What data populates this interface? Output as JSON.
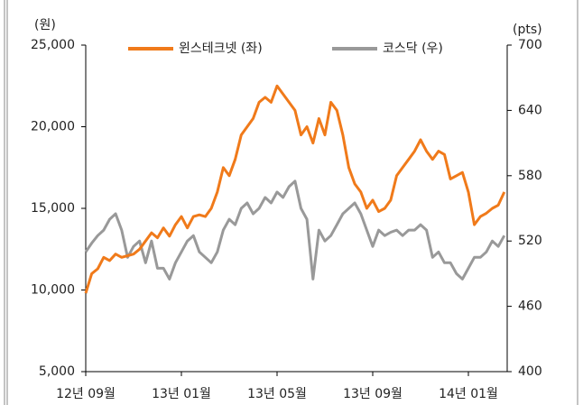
{
  "chart_data": {
    "type": "line",
    "y_label": "(원)",
    "y2_label": "(pts)",
    "categories": [
      "12년 09월",
      null,
      null,
      null,
      null,
      null,
      null,
      null,
      null,
      null,
      null,
      null,
      null,
      null,
      null,
      null,
      "13년 01월",
      null,
      null,
      null,
      null,
      null,
      null,
      null,
      null,
      null,
      null,
      null,
      null,
      null,
      null,
      null,
      "13년 05월",
      null,
      null,
      null,
      null,
      null,
      null,
      null,
      null,
      null,
      null,
      null,
      null,
      null,
      null,
      null,
      "13년 09월",
      null,
      null,
      null,
      null,
      null,
      null,
      null,
      null,
      null,
      null,
      null,
      null,
      null,
      null,
      null,
      "14년 01월",
      null,
      null,
      null,
      null,
      null,
      null
    ],
    "series": [
      {
        "name": "윈스테크넷 (좌)",
        "color": "#f07a1a",
        "axis": "y",
        "values": [
          9800,
          11000,
          11300,
          12000,
          11800,
          12200,
          12000,
          12100,
          12200,
          12500,
          13000,
          13500,
          13200,
          13800,
          13300,
          14000,
          14500,
          13800,
          14500,
          14600,
          14500,
          15000,
          16000,
          17500,
          17000,
          18000,
          19500,
          20000,
          20500,
          21500,
          21800,
          21500,
          22500,
          22000,
          21500,
          21000,
          19500,
          20000,
          19000,
          20500,
          19500,
          21500,
          21000,
          19500,
          17500,
          16500,
          16000,
          15000,
          15500,
          14800,
          15000,
          15500,
          17000,
          17500,
          18000,
          18500,
          19200,
          18500,
          18000,
          18500,
          18300,
          16800,
          17000,
          17200,
          16000,
          14000,
          14500,
          14700,
          15000,
          15200,
          16000
        ]
      },
      {
        "name": "코스닥 (우)",
        "color": "#999999",
        "axis": "y2",
        "values": [
          510,
          518,
          525,
          530,
          540,
          545,
          530,
          505,
          515,
          520,
          500,
          520,
          495,
          495,
          485,
          500,
          510,
          520,
          525,
          510,
          505,
          500,
          510,
          530,
          540,
          535,
          550,
          555,
          545,
          550,
          560,
          555,
          565,
          560,
          570,
          575,
          550,
          540,
          485,
          530,
          520,
          525,
          535,
          545,
          550,
          555,
          545,
          530,
          515,
          530,
          525,
          528,
          530,
          525,
          530,
          530,
          535,
          530,
          505,
          510,
          500,
          500,
          490,
          485,
          495,
          505,
          505,
          510,
          520,
          515,
          525
        ]
      }
    ],
    "ylim": [
      5000,
      25000
    ],
    "yticks": [
      {
        "value": 5000,
        "label": "5,000"
      },
      {
        "value": 10000,
        "label": "10,000"
      },
      {
        "value": 15000,
        "label": "15,000"
      },
      {
        "value": 20000,
        "label": "20,000"
      },
      {
        "value": 25000,
        "label": "25,000"
      }
    ],
    "y2lim": [
      400,
      700
    ],
    "y2ticks": [
      400,
      460,
      520,
      580,
      640,
      700
    ]
  }
}
